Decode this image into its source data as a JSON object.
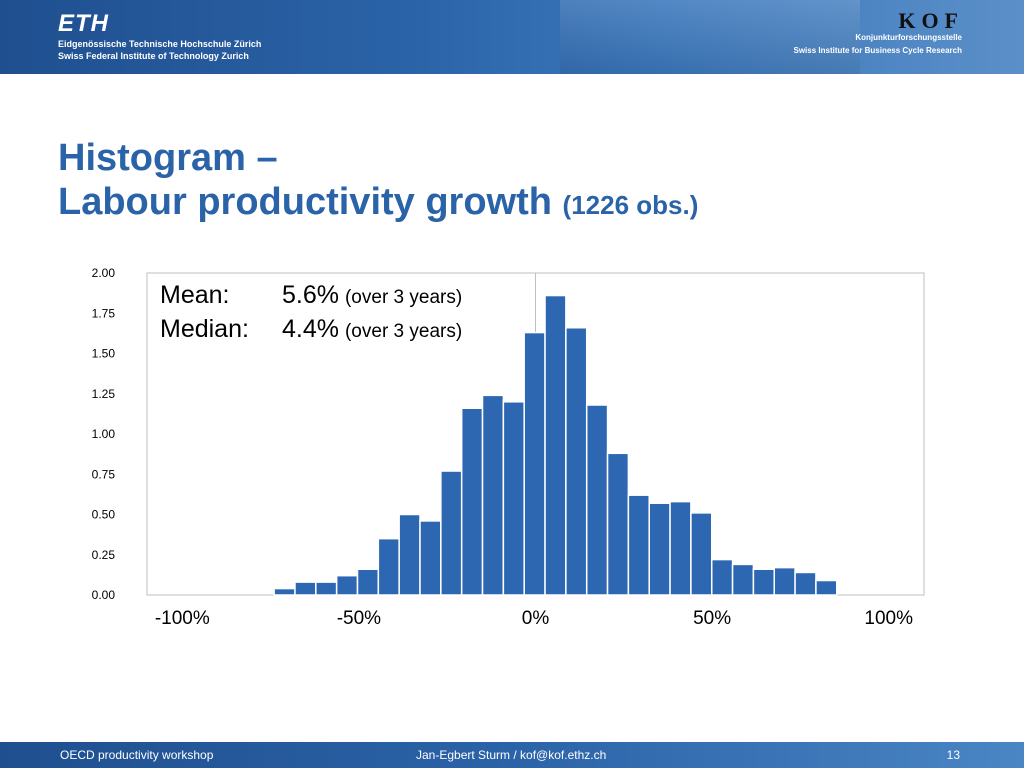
{
  "header": {
    "eth_logo": "ETH",
    "eth_line1": "Eidgenössische Technische Hochschule Zürich",
    "eth_line2": "Swiss Federal Institute of Technology Zurich",
    "kof_logo": "KOF",
    "kof_line1": "Konjunkturforschungsstelle",
    "kof_line2": "Swiss Institute for Business Cycle Research"
  },
  "title": {
    "line1": "Histogram –",
    "line2": "Labour productivity growth",
    "obs": "(1226 obs.)"
  },
  "stats": {
    "mean_label": "Mean:",
    "mean_value": "5.6%",
    "mean_note": "(over 3 years)",
    "median_label": "Median:",
    "median_value": "4.4%",
    "median_note": "(over 3 years)"
  },
  "colors": {
    "bar": "#2e67b1",
    "bar_edge": "#ffffff",
    "title": "#2b63a8",
    "axis": "#bfbfbf"
  },
  "chart_data": {
    "type": "bar",
    "xlabel": "",
    "ylabel": "",
    "ylim": [
      0,
      2
    ],
    "xlim": [
      -110,
      110
    ],
    "y_ticks": [
      {
        "value": 0,
        "label": "0.00"
      },
      {
        "value": 0.25,
        "label": "0.25"
      },
      {
        "value": 0.5,
        "label": "0.50"
      },
      {
        "value": 0.75,
        "label": "0.75"
      },
      {
        "value": 1.0,
        "label": "1.00"
      },
      {
        "value": 1.25,
        "label": "1.25"
      },
      {
        "value": 1.5,
        "label": "1.50"
      },
      {
        "value": 1.75,
        "label": "1.75"
      },
      {
        "value": 2.0,
        "label": "2.00"
      }
    ],
    "x_ticks": [
      {
        "value": -100,
        "label": "-100%"
      },
      {
        "value": -50,
        "label": "-50%"
      },
      {
        "value": 0,
        "label": "0%"
      },
      {
        "value": 50,
        "label": "50%"
      },
      {
        "value": 100,
        "label": "100%"
      }
    ],
    "bin_width": 5.9,
    "bin_starts": [
      -74,
      -68.1,
      -62.2,
      -56.3,
      -50.4,
      -44.5,
      -38.6,
      -32.7,
      -26.8,
      -20.9,
      -15,
      -9.1,
      -3.2,
      2.7,
      8.6,
      14.5,
      20.4,
      26.3,
      32.2,
      38.1,
      44,
      49.9,
      55.8,
      61.7,
      67.6,
      73.5,
      79.4
    ],
    "values": [
      0.04,
      0.08,
      0.08,
      0.12,
      0.16,
      0.35,
      0.5,
      0.46,
      0.77,
      1.16,
      1.24,
      1.2,
      1.63,
      1.86,
      1.66,
      1.18,
      0.88,
      0.62,
      0.57,
      0.58,
      0.51,
      0.22,
      0.19,
      0.16,
      0.17,
      0.14,
      0.09
    ],
    "grid": false,
    "legend": "none"
  },
  "footer": {
    "left": "OECD productivity workshop",
    "center": "Jan-Egbert Sturm / kof@kof.ethz.ch",
    "page": "13"
  }
}
